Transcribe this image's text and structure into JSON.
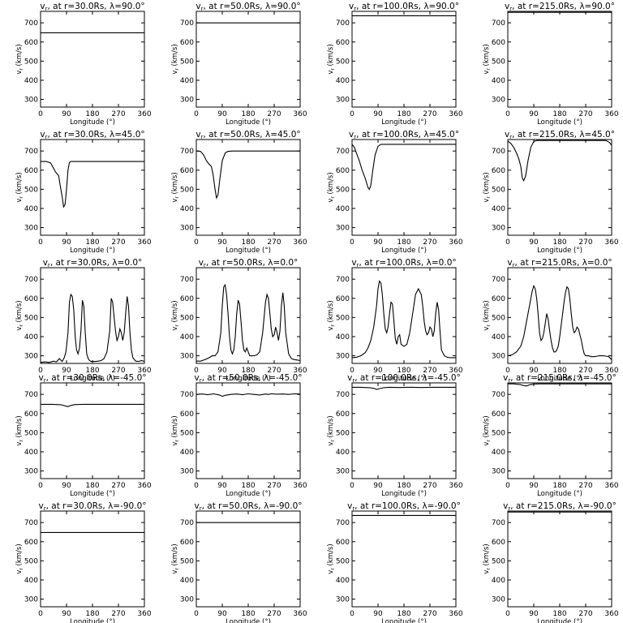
{
  "chart_data": {
    "type": "line",
    "grid": false,
    "xlabel": "Longitude (°)",
    "ylabel": "vr (km/s)",
    "xlim": [
      0,
      360
    ],
    "ylim": [
      260,
      760
    ],
    "xticks": [
      0,
      90,
      180,
      270,
      360
    ],
    "yticks": [
      300,
      400,
      500,
      600,
      700
    ],
    "tick_labels_x": [
      "0",
      "90",
      "180",
      "270",
      "360"
    ],
    "tick_labels_y": [
      "300",
      "400",
      "500",
      "600",
      "700"
    ],
    "title_template": ", at r={r}Rs, λ={lat}°",
    "title_symbol": "v",
    "title_subscript": "r",
    "xlabel_text": "Longitude (°)",
    "ylabel_text": "v",
    "ylabel_sub": "r",
    "ylabel_units": "(km/s)",
    "panels": [
      {
        "r": "30.0",
        "lat": "90.0",
        "x": [
          0,
          360
        ],
        "y": [
          648,
          648
        ]
      },
      {
        "r": "50.0",
        "lat": "90.0",
        "x": [
          0,
          360
        ],
        "y": [
          700,
          700
        ]
      },
      {
        "r": "100.0",
        "lat": "90.0",
        "x": [
          0,
          360
        ],
        "y": [
          737,
          737
        ]
      },
      {
        "r": "215.0",
        "lat": "90.0",
        "x": [
          0,
          360
        ],
        "y": [
          755,
          755
        ]
      },
      {
        "r": "30.0",
        "lat": "45.0",
        "x": [
          0,
          20,
          35,
          45,
          52,
          58,
          63,
          68,
          75,
          80,
          85,
          90,
          95,
          100,
          105,
          110,
          360
        ],
        "y": [
          645,
          645,
          638,
          610,
          590,
          580,
          570,
          520,
          460,
          408,
          420,
          500,
          600,
          640,
          645,
          645,
          645
        ]
      },
      {
        "r": "50.0",
        "lat": "45.0",
        "x": [
          0,
          15,
          25,
          35,
          45,
          52,
          58,
          65,
          70,
          75,
          82,
          90,
          100,
          110,
          125,
          360
        ],
        "y": [
          700,
          698,
          680,
          650,
          630,
          620,
          580,
          500,
          455,
          470,
          560,
          650,
          690,
          698,
          700,
          700
        ]
      },
      {
        "r": "100.0",
        "lat": "45.0",
        "x": [
          0,
          8,
          15,
          25,
          35,
          45,
          55,
          60,
          65,
          72,
          80,
          90,
          100,
          110,
          360
        ],
        "y": [
          735,
          720,
          690,
          650,
          600,
          560,
          510,
          500,
          520,
          600,
          680,
          725,
          735,
          735,
          735
        ]
      },
      {
        "r": "215.0",
        "lat": "45.0",
        "x": [
          0,
          10,
          20,
          30,
          38,
          45,
          50,
          55,
          62,
          70,
          80,
          90,
          100,
          340,
          352,
          360
        ],
        "y": [
          752,
          740,
          720,
          690,
          660,
          620,
          560,
          545,
          570,
          650,
          720,
          750,
          755,
          755,
          745,
          730
        ]
      },
      {
        "r": "30.0",
        "lat": "0.0",
        "x": [
          0,
          15,
          30,
          45,
          55,
          65,
          75,
          82,
          88,
          95,
          100,
          105,
          110,
          115,
          120,
          125,
          130,
          135,
          140,
          145,
          150,
          155,
          160,
          165,
          170,
          175,
          180,
          190,
          200,
          210,
          220,
          230,
          240,
          245,
          250,
          255,
          260,
          265,
          270,
          275,
          280,
          285,
          290,
          295,
          300,
          305,
          310,
          315,
          320,
          330,
          340,
          350,
          360
        ],
        "y": [
          265,
          268,
          265,
          272,
          268,
          285,
          270,
          290,
          320,
          420,
          580,
          620,
          610,
          540,
          400,
          330,
          310,
          340,
          430,
          590,
          560,
          420,
          310,
          285,
          275,
          270,
          270,
          270,
          272,
          275,
          285,
          320,
          430,
          600,
          580,
          500,
          430,
          380,
          400,
          440,
          420,
          380,
          420,
          520,
          610,
          560,
          420,
          330,
          290,
          272,
          270,
          275,
          270
        ]
      },
      {
        "r": "50.0",
        "lat": "0.0",
        "x": [
          0,
          15,
          30,
          45,
          55,
          65,
          75,
          85,
          90,
          95,
          100,
          105,
          110,
          115,
          120,
          125,
          130,
          135,
          140,
          145,
          150,
          155,
          160,
          165,
          170,
          175,
          180,
          185,
          190,
          200,
          210,
          220,
          230,
          240,
          245,
          250,
          255,
          260,
          265,
          270,
          275,
          280,
          285,
          290,
          295,
          300,
          305,
          310,
          320,
          330,
          340,
          350,
          360
        ],
        "y": [
          272,
          272,
          280,
          290,
          300,
          300,
          320,
          420,
          560,
          660,
          670,
          620,
          520,
          400,
          330,
          310,
          330,
          400,
          520,
          590,
          570,
          480,
          380,
          330,
          320,
          340,
          320,
          300,
          300,
          300,
          305,
          320,
          420,
          580,
          620,
          600,
          520,
          440,
          400,
          410,
          450,
          420,
          380,
          430,
          560,
          630,
          560,
          420,
          310,
          285,
          280,
          278,
          275
        ]
      },
      {
        "r": "100.0",
        "lat": "0.0",
        "x": [
          0,
          15,
          30,
          45,
          55,
          65,
          75,
          85,
          90,
          95,
          100,
          105,
          110,
          115,
          120,
          125,
          130,
          135,
          140,
          145,
          150,
          155,
          160,
          165,
          170,
          180,
          190,
          200,
          210,
          220,
          230,
          240,
          245,
          250,
          255,
          260,
          265,
          270,
          275,
          280,
          285,
          290,
          295,
          300,
          305,
          310,
          320,
          330,
          340,
          350,
          360
        ],
        "y": [
          290,
          292,
          300,
          315,
          340,
          380,
          450,
          560,
          650,
          690,
          680,
          620,
          520,
          440,
          420,
          450,
          520,
          580,
          570,
          480,
          390,
          360,
          400,
          410,
          360,
          350,
          360,
          420,
          520,
          620,
          650,
          620,
          560,
          480,
          430,
          410,
          420,
          450,
          440,
          400,
          430,
          520,
          580,
          540,
          430,
          330,
          300,
          292,
          290,
          290,
          290
        ]
      },
      {
        "r": "215.0",
        "lat": "0.0",
        "x": [
          0,
          15,
          30,
          45,
          55,
          65,
          75,
          85,
          90,
          95,
          100,
          105,
          110,
          115,
          120,
          125,
          130,
          135,
          140,
          145,
          150,
          155,
          160,
          165,
          170,
          175,
          180,
          185,
          190,
          195,
          200,
          205,
          210,
          215,
          220,
          225,
          230,
          235,
          240,
          245,
          250,
          255,
          260,
          265,
          270,
          280,
          290,
          300,
          310,
          320,
          330,
          340,
          350,
          360
        ],
        "y": [
          300,
          305,
          320,
          350,
          400,
          480,
          560,
          640,
          665,
          650,
          600,
          520,
          420,
          380,
          390,
          420,
          470,
          520,
          490,
          430,
          380,
          340,
          320,
          320,
          330,
          350,
          400,
          460,
          520,
          580,
          630,
          660,
          650,
          600,
          520,
          450,
          420,
          430,
          450,
          440,
          410,
          380,
          340,
          310,
          300,
          300,
          295,
          295,
          298,
          300,
          300,
          298,
          295,
          280
        ]
      },
      {
        "r": "30.0",
        "lat": "-45.0",
        "x": [
          0,
          40,
          70,
          85,
          95,
          105,
          120,
          150,
          360
        ],
        "y": [
          648,
          648,
          646,
          640,
          636,
          642,
          647,
          648,
          648
        ]
      },
      {
        "r": "50.0",
        "lat": "-45.0",
        "x": [
          0,
          20,
          40,
          60,
          80,
          90,
          100,
          120,
          140,
          160,
          180,
          200,
          220,
          240,
          250,
          260,
          280,
          300,
          320,
          340,
          360
        ],
        "y": [
          700,
          702,
          698,
          703,
          697,
          690,
          695,
          700,
          702,
          698,
          703,
          700,
          697,
          702,
          700,
          703,
          701,
          702,
          700,
          703,
          702
        ]
      },
      {
        "r": "100.0",
        "lat": "-45.0",
        "x": [
          0,
          30,
          60,
          75,
          85,
          95,
          110,
          130,
          160,
          200,
          240,
          280,
          320,
          360
        ],
        "y": [
          737,
          737,
          735,
          732,
          726,
          730,
          735,
          737,
          736,
          737,
          736,
          737,
          737,
          737
        ]
      },
      {
        "r": "215.0",
        "lat": "-45.0",
        "x": [
          0,
          20,
          40,
          55,
          65,
          75,
          90,
          110,
          140,
          200,
          260,
          320,
          360
        ],
        "y": [
          755,
          755,
          752,
          746,
          744,
          750,
          754,
          755,
          755,
          755,
          755,
          755,
          755
        ]
      },
      {
        "r": "30.0",
        "lat": "-90.0",
        "x": [
          0,
          360
        ],
        "y": [
          648,
          648
        ]
      },
      {
        "r": "50.0",
        "lat": "-90.0",
        "x": [
          0,
          360
        ],
        "y": [
          700,
          700
        ]
      },
      {
        "r": "100.0",
        "lat": "-90.0",
        "x": [
          0,
          360
        ],
        "y": [
          737,
          737
        ]
      },
      {
        "r": "215.0",
        "lat": "-90.0",
        "x": [
          0,
          360
        ],
        "y": [
          755,
          755
        ]
      }
    ]
  }
}
